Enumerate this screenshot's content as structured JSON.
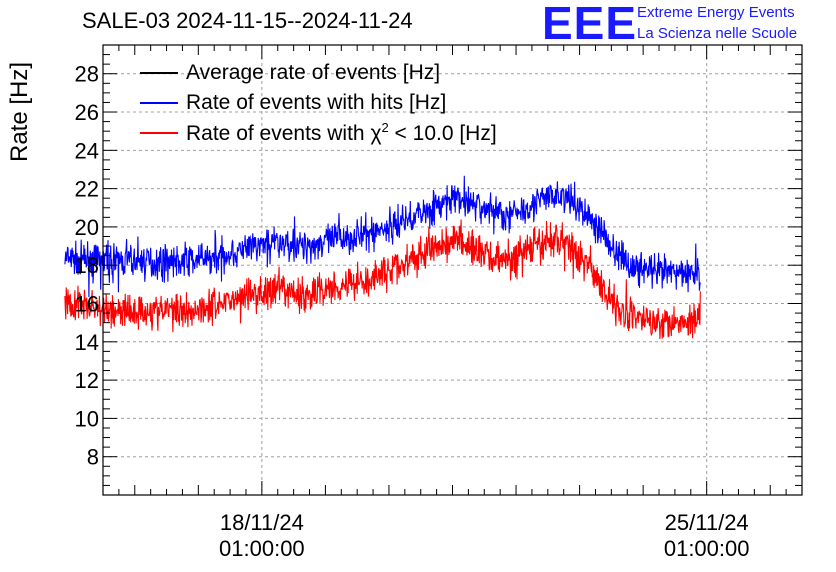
{
  "chart_data": {
    "type": "line",
    "title": "SALE-03 2024-11-15--2024-11-24",
    "ylabel": "Rate [Hz]",
    "xlabel": "",
    "ylim": [
      6,
      29.5
    ],
    "yticks": [
      8,
      10,
      12,
      14,
      16,
      18,
      20,
      22,
      24,
      26,
      28
    ],
    "xlim": [
      -2.5,
      8.5
    ],
    "xticks": [
      {
        "value": 0,
        "line1": "18/11/24",
        "line2": "01:00:00"
      },
      {
        "value": 7,
        "line1": "25/11/24",
        "line2": "01:00:00"
      }
    ],
    "grid": true,
    "legend_position": "top-left",
    "series": [
      {
        "name": "Average rate of events [Hz]",
        "color": "#000000",
        "noise": 0,
        "x": [],
        "values": []
      },
      {
        "name": "Rate of events with hits [Hz]",
        "color": "#0000ff",
        "noise": 1.3,
        "x": [
          -3.1,
          -2.3,
          -1.5,
          -0.9,
          -0.3,
          0.2,
          0.7,
          1.2,
          1.7,
          2.2,
          2.7,
          3.1,
          3.5,
          3.9,
          4.3,
          4.7,
          5.0,
          5.3,
          5.6,
          5.9,
          6.3,
          6.7,
          6.9
        ],
        "values": [
          18.3,
          18.2,
          18.2,
          18.3,
          18.8,
          19.2,
          19.0,
          19.4,
          19.6,
          20.3,
          21.0,
          21.5,
          21.0,
          20.6,
          21.3,
          21.7,
          21.0,
          20.0,
          18.5,
          17.8,
          17.6,
          17.6,
          17.6
        ]
      },
      {
        "name": "Rate of events with χ² < 10.0 [Hz]",
        "color": "#ff0000",
        "noise": 1.4,
        "x": [
          -3.1,
          -2.3,
          -1.5,
          -0.9,
          -0.3,
          0.2,
          0.7,
          1.2,
          1.7,
          2.2,
          2.7,
          3.1,
          3.5,
          3.9,
          4.3,
          4.7,
          5.0,
          5.3,
          5.6,
          5.9,
          6.3,
          6.7,
          6.9
        ],
        "values": [
          16.0,
          15.6,
          15.6,
          15.8,
          16.4,
          16.7,
          16.4,
          17.0,
          17.3,
          18.0,
          18.9,
          19.3,
          18.6,
          18.2,
          19.0,
          19.4,
          18.5,
          17.2,
          15.8,
          15.2,
          15.1,
          15.1,
          15.3
        ]
      }
    ],
    "legend_labels": {
      "avg": "Average rate of events [Hz]",
      "hits": "Rate of events with hits [Hz]",
      "chi_prefix": "Rate of events with ",
      "chi_symbol": "χ",
      "chi_sup": "2",
      "chi_suffix": " < 10.0 [Hz]"
    }
  },
  "logo": {
    "mark": "EEE",
    "line1": "Extreme Energy Events",
    "line2": "La Scienza nelle Scuole"
  }
}
